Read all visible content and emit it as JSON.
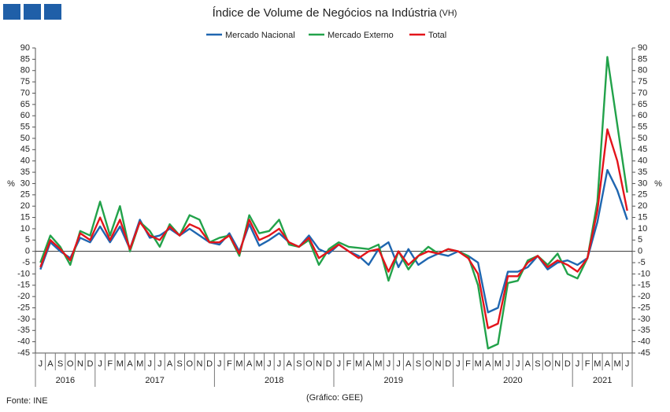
{
  "chart_data": {
    "type": "line",
    "title": "Índice de Volume de Negócios na Indústria",
    "title_suffix": "(VH)",
    "ylabel": "%",
    "y2label": "%",
    "source": "Fonte: INE",
    "credit": "(Gráfico: GEE)",
    "categories": [
      "J",
      "A",
      "S",
      "O",
      "N",
      "D",
      "J",
      "F",
      "M",
      "A",
      "M",
      "J",
      "J",
      "A",
      "S",
      "O",
      "N",
      "D",
      "J",
      "F",
      "M",
      "A",
      "M",
      "J",
      "J",
      "A",
      "S",
      "O",
      "N",
      "D",
      "J",
      "F",
      "M",
      "A",
      "M",
      "J",
      "J",
      "A",
      "S",
      "O",
      "N",
      "D",
      "J",
      "F",
      "M",
      "A",
      "M",
      "J",
      "J",
      "A",
      "S",
      "O",
      "N",
      "D",
      "J",
      "F",
      "M",
      "A",
      "M",
      "J"
    ],
    "years": [
      "2016",
      "2017",
      "2018",
      "2019",
      "2020",
      "2021"
    ],
    "series": [
      {
        "name": "Mercado Nacional",
        "color": "#1f66b0",
        "values": [
          -8,
          4,
          0,
          -3,
          6,
          4,
          11,
          4,
          11,
          1,
          14,
          6,
          7,
          10,
          7,
          10,
          7,
          4,
          3,
          8,
          0,
          12,
          2.5,
          5,
          8,
          4,
          2,
          7,
          1,
          -1,
          3,
          0,
          -2,
          -6,
          1,
          4,
          -7,
          1,
          -6,
          -3,
          -1,
          -2,
          0,
          -2,
          -5,
          -27,
          -25,
          -9,
          -9,
          -7,
          -2,
          -8,
          -5,
          -4,
          -6,
          -3,
          13,
          36,
          27,
          14
        ]
      },
      {
        "name": "Mercado Externo",
        "color": "#22a24a",
        "values": [
          -5,
          7,
          2,
          -6,
          9,
          7,
          22,
          7,
          20,
          0,
          13,
          9,
          2,
          12,
          7,
          16,
          14,
          4,
          6,
          7,
          -2,
          16,
          8,
          9,
          14,
          3,
          2,
          5,
          -6,
          1,
          4,
          2,
          1.5,
          1,
          3,
          -13,
          0,
          -8,
          -2,
          2,
          -1,
          1,
          0,
          -2,
          -15,
          -43,
          -41,
          -14,
          -13,
          -4,
          -2,
          -6,
          -1,
          -10,
          -12,
          -3,
          22,
          86,
          56,
          26
        ]
      },
      {
        "name": "Total",
        "color": "#e3141b",
        "values": [
          -7,
          5,
          1,
          -4,
          8,
          5,
          15,
          5,
          14,
          1,
          13,
          7,
          5,
          11,
          7,
          12,
          10,
          4,
          4,
          7,
          -1,
          14,
          5,
          7,
          10,
          4,
          2,
          6,
          -3,
          0,
          3,
          0,
          -3,
          0,
          1,
          -9,
          0,
          -6,
          -2,
          0,
          -1,
          1,
          0,
          -3,
          -10,
          -34,
          -32,
          -11,
          -11,
          -5,
          -2,
          -7,
          -4,
          -6,
          -9,
          -3,
          18,
          54,
          40,
          18
        ]
      }
    ],
    "ylim": [
      -45,
      90
    ],
    "yticks": [
      -45,
      -40,
      -35,
      -30,
      -25,
      -20,
      -15,
      -10,
      -5,
      0,
      5,
      10,
      15,
      20,
      25,
      30,
      35,
      40,
      45,
      50,
      55,
      60,
      65,
      70,
      75,
      80,
      85,
      90
    ],
    "y2lim": [
      -45,
      90
    ],
    "y2ticks": [
      -45,
      -40,
      -35,
      -30,
      -25,
      -20,
      -15,
      -10,
      -5,
      0,
      5,
      10,
      15,
      20,
      25,
      30,
      35,
      40,
      45,
      50,
      55,
      60,
      65,
      70,
      75,
      80,
      85,
      90
    ],
    "legend": "top"
  }
}
